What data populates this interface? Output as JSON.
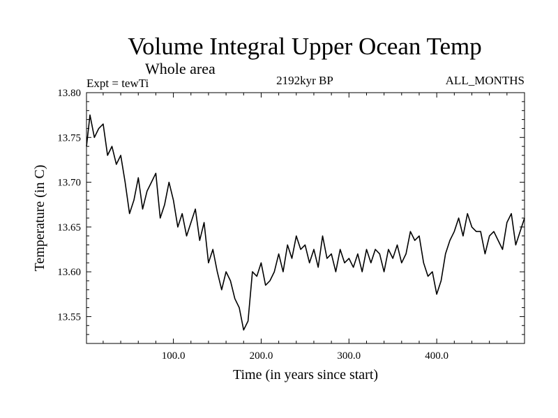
{
  "chart_data": {
    "type": "line",
    "title": "Volume Integral Upper Ocean Temp",
    "subtitle": "Whole area",
    "expt_label": "Expt = tewTi",
    "period_label": "2192kyr BP",
    "months_label": "ALL_MONTHS",
    "xlabel": "Time (in years since start)",
    "ylabel": "Temperature (in C)",
    "xlim": [
      1,
      500
    ],
    "ylim": [
      13.52,
      13.8
    ],
    "x_ticks": [
      100,
      200,
      300,
      400
    ],
    "x_tick_labels": [
      "100.0",
      "200.0",
      "300.0",
      "400.0"
    ],
    "y_ticks": [
      13.55,
      13.6,
      13.65,
      13.7,
      13.75,
      13.8
    ],
    "y_tick_labels": [
      "13.55",
      "13.60",
      "13.65",
      "13.70",
      "13.75",
      "13.80"
    ],
    "series": [
      {
        "name": "Volume integral upper ocean temperature",
        "x": [
          1,
          5,
          10,
          15,
          20,
          25,
          30,
          35,
          40,
          45,
          50,
          55,
          60,
          65,
          70,
          75,
          80,
          85,
          90,
          95,
          100,
          105,
          110,
          115,
          120,
          125,
          130,
          135,
          140,
          145,
          150,
          155,
          160,
          165,
          170,
          175,
          180,
          185,
          190,
          195,
          200,
          205,
          210,
          215,
          220,
          225,
          230,
          235,
          240,
          245,
          250,
          255,
          260,
          265,
          270,
          275,
          280,
          285,
          290,
          295,
          300,
          305,
          310,
          315,
          320,
          325,
          330,
          335,
          340,
          345,
          350,
          355,
          360,
          365,
          370,
          375,
          380,
          385,
          390,
          395,
          400,
          405,
          410,
          415,
          420,
          425,
          430,
          435,
          440,
          445,
          450,
          455,
          460,
          465,
          470,
          475,
          480,
          485,
          490,
          495,
          500
        ],
        "values": [
          13.74,
          13.775,
          13.75,
          13.76,
          13.765,
          13.73,
          13.74,
          13.72,
          13.73,
          13.7,
          13.665,
          13.68,
          13.705,
          13.67,
          13.69,
          13.7,
          13.71,
          13.66,
          13.675,
          13.7,
          13.68,
          13.65,
          13.665,
          13.64,
          13.655,
          13.67,
          13.635,
          13.655,
          13.61,
          13.625,
          13.6,
          13.58,
          13.6,
          13.59,
          13.57,
          13.56,
          13.535,
          13.545,
          13.6,
          13.595,
          13.61,
          13.585,
          13.59,
          13.6,
          13.62,
          13.6,
          13.63,
          13.615,
          13.64,
          13.625,
          13.63,
          13.61,
          13.625,
          13.605,
          13.64,
          13.615,
          13.62,
          13.6,
          13.625,
          13.61,
          13.615,
          13.605,
          13.62,
          13.6,
          13.625,
          13.61,
          13.625,
          13.62,
          13.6,
          13.625,
          13.615,
          13.63,
          13.61,
          13.62,
          13.645,
          13.635,
          13.64,
          13.61,
          13.595,
          13.6,
          13.575,
          13.59,
          13.62,
          13.635,
          13.645,
          13.66,
          13.64,
          13.665,
          13.65,
          13.645,
          13.645,
          13.62,
          13.64,
          13.645,
          13.635,
          13.625,
          13.655,
          13.665,
          13.63,
          13.645,
          13.66
        ]
      }
    ]
  }
}
